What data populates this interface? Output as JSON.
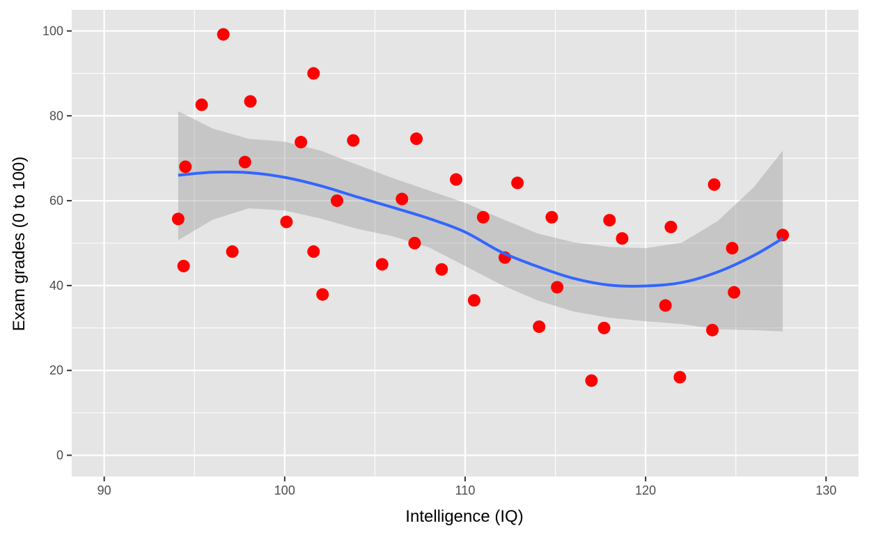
{
  "chart_data": {
    "type": "scatter",
    "xlabel": "Intelligence (IQ)",
    "ylabel": "Exam grades (0 to 100)",
    "xlim": [
      88.2,
      131.8
    ],
    "ylim": [
      -5,
      105
    ],
    "x_ticks": [
      90,
      100,
      110,
      120,
      130
    ],
    "y_ticks": [
      0,
      20,
      40,
      60,
      80,
      100
    ],
    "grid": true,
    "colors": {
      "panel_background": "#e5e5e5",
      "grid": "#ffffff",
      "points": "#ff0000",
      "smooth_line": "#3366ff",
      "confidence_band": "#999999"
    },
    "points": [
      {
        "x": 94.1,
        "y": 55.7
      },
      {
        "x": 94.4,
        "y": 44.6
      },
      {
        "x": 94.5,
        "y": 68.0
      },
      {
        "x": 95.4,
        "y": 82.6
      },
      {
        "x": 96.6,
        "y": 99.2
      },
      {
        "x": 97.1,
        "y": 48.0
      },
      {
        "x": 97.8,
        "y": 69.1
      },
      {
        "x": 98.1,
        "y": 83.4
      },
      {
        "x": 100.1,
        "y": 55.0
      },
      {
        "x": 100.9,
        "y": 73.8
      },
      {
        "x": 101.6,
        "y": 90.0
      },
      {
        "x": 101.6,
        "y": 48.0
      },
      {
        "x": 102.1,
        "y": 37.9
      },
      {
        "x": 102.9,
        "y": 60.0
      },
      {
        "x": 103.8,
        "y": 74.2
      },
      {
        "x": 105.4,
        "y": 45.0
      },
      {
        "x": 106.5,
        "y": 60.4
      },
      {
        "x": 107.2,
        "y": 50.0
      },
      {
        "x": 107.3,
        "y": 74.6
      },
      {
        "x": 108.7,
        "y": 43.8
      },
      {
        "x": 109.5,
        "y": 65.0
      },
      {
        "x": 110.5,
        "y": 36.5
      },
      {
        "x": 111.0,
        "y": 56.1
      },
      {
        "x": 112.2,
        "y": 46.6
      },
      {
        "x": 112.9,
        "y": 64.2
      },
      {
        "x": 114.1,
        "y": 30.3
      },
      {
        "x": 114.8,
        "y": 56.1
      },
      {
        "x": 115.1,
        "y": 39.6
      },
      {
        "x": 117.0,
        "y": 17.6
      },
      {
        "x": 117.7,
        "y": 30.0
      },
      {
        "x": 118.0,
        "y": 55.4
      },
      {
        "x": 118.7,
        "y": 51.1
      },
      {
        "x": 121.1,
        "y": 35.3
      },
      {
        "x": 121.4,
        "y": 53.8
      },
      {
        "x": 121.9,
        "y": 18.4
      },
      {
        "x": 123.7,
        "y": 29.5
      },
      {
        "x": 123.8,
        "y": 63.8
      },
      {
        "x": 124.8,
        "y": 48.8
      },
      {
        "x": 124.9,
        "y": 38.4
      },
      {
        "x": 127.6,
        "y": 51.9
      }
    ],
    "smooth": [
      {
        "x": 94.1,
        "y": 66.0,
        "lo": 50.7,
        "hi": 81.1
      },
      {
        "x": 96.0,
        "y": 66.7,
        "lo": 55.5,
        "hi": 77.0
      },
      {
        "x": 98.0,
        "y": 66.6,
        "lo": 58.2,
        "hi": 74.6
      },
      {
        "x": 100.0,
        "y": 65.5,
        "lo": 57.7,
        "hi": 73.9
      },
      {
        "x": 102.0,
        "y": 63.5,
        "lo": 55.8,
        "hi": 71.8
      },
      {
        "x": 104.0,
        "y": 60.9,
        "lo": 53.4,
        "hi": 68.5
      },
      {
        "x": 106.0,
        "y": 58.4,
        "lo": 51.6,
        "hi": 65.3
      },
      {
        "x": 108.0,
        "y": 55.8,
        "lo": 49.0,
        "hi": 62.4
      },
      {
        "x": 110.0,
        "y": 52.6,
        "lo": 44.6,
        "hi": 59.5
      },
      {
        "x": 112.0,
        "y": 47.9,
        "lo": 40.2,
        "hi": 55.8
      },
      {
        "x": 114.0,
        "y": 44.5,
        "lo": 36.5,
        "hi": 52.3
      },
      {
        "x": 116.0,
        "y": 41.7,
        "lo": 33.9,
        "hi": 50.2
      },
      {
        "x": 118.0,
        "y": 40.1,
        "lo": 32.4,
        "hi": 49.1
      },
      {
        "x": 120.0,
        "y": 39.9,
        "lo": 31.6,
        "hi": 48.8
      },
      {
        "x": 122.0,
        "y": 40.7,
        "lo": 30.9,
        "hi": 50.1
      },
      {
        "x": 124.0,
        "y": 43.2,
        "lo": 29.7,
        "hi": 55.2
      },
      {
        "x": 126.0,
        "y": 47.1,
        "lo": 29.5,
        "hi": 63.2
      },
      {
        "x": 127.6,
        "y": 51.1,
        "lo": 29.2,
        "hi": 71.8
      }
    ]
  }
}
